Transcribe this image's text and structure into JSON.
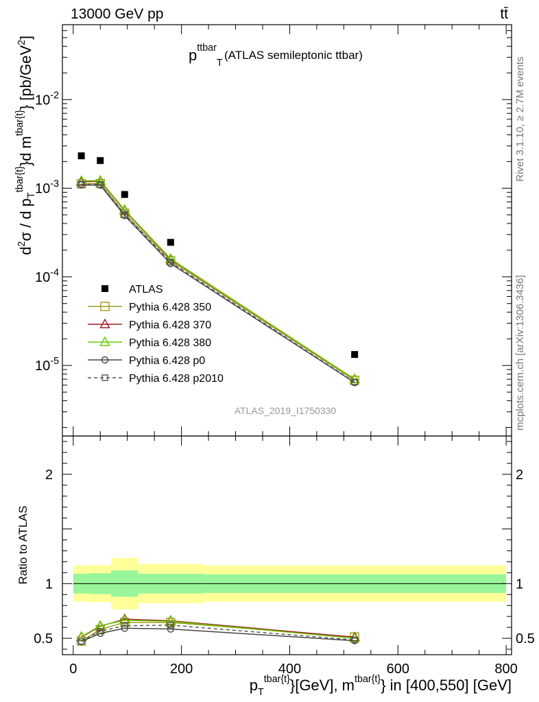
{
  "header": {
    "energy_label": "13000 GeV pp",
    "process_label": "tt̄"
  },
  "side_labels": {
    "rivet": "Rivet 3.1.10, ≥ 2.7M events",
    "mcplots": "mcplots.cern.ch [arXiv:1306.3436]"
  },
  "colors": {
    "data": "#000000",
    "p350": "#9e9a1e",
    "p370": "#a01c24",
    "p380": "#66cc00",
    "p0": "#444444",
    "p2010": "#555555",
    "band_inner": "#99f599",
    "band_outer": "#ffff99"
  },
  "chart_data": [
    {
      "type": "line",
      "title_main": "p",
      "title_sub": "T",
      "title_sup": "ttbar",
      "title_rest": "(ATLAS semileptonic ttbar)",
      "watermark": "ATLAS_2019_I1750330",
      "ylabel": "d²σ / d p_T^{tbar{t}}d m^{tbar{t}} [pb/GeV²]",
      "ylog": true,
      "ylim": [
        1.6e-06,
        0.07
      ],
      "xlim": [
        -20,
        810
      ],
      "ytick_labels": [
        "10^{-2}",
        "10^{-3}",
        "10^{-4}",
        "10^{-5}"
      ],
      "legend_position": "lower-left",
      "x": [
        15,
        50,
        95,
        180,
        520
      ],
      "series": [
        {
          "name": "ATLAS",
          "key": "data",
          "marker": "filled-square",
          "values": [
            0.00232,
            0.00205,
            0.00085,
            0.000245,
            1.33e-05
          ]
        },
        {
          "name": "Pythia 6.428 350",
          "key": "p350",
          "marker": "open-square",
          "dashed": false,
          "values": [
            0.00112,
            0.00113,
            0.00052,
            0.000152,
            6.8e-06
          ]
        },
        {
          "name": "Pythia 6.428 370",
          "key": "p370",
          "marker": "open-triangle",
          "dashed": false,
          "values": [
            0.00118,
            0.0012,
            0.00056,
            0.000158,
            7e-06
          ]
        },
        {
          "name": "Pythia 6.428 380",
          "key": "p380",
          "marker": "open-triangle",
          "dashed": false,
          "values": [
            0.00121,
            0.00122,
            0.00057,
            0.00016,
            7e-06
          ]
        },
        {
          "name": "Pythia 6.428 p0",
          "key": "p0",
          "marker": "open-circle",
          "dashed": false,
          "values": [
            0.00109,
            0.00108,
            0.00049,
            0.000141,
            6.4e-06
          ]
        },
        {
          "name": "Pythia 6.428 p2010",
          "key": "p2010",
          "marker": "open-square-small",
          "dashed": true,
          "values": [
            0.00111,
            0.0011,
            0.000505,
            0.000146,
            6.5e-06
          ]
        }
      ]
    },
    {
      "type": "line",
      "ylabel": "Ratio to ATLAS",
      "xlabel": "p_T^{tbar{t}}[GeV], m^{tbar{t}} in [400,550] [GeV]",
      "ylim": [
        0.35,
        2.35
      ],
      "xlim": [
        -20,
        810
      ],
      "xticks": [
        0,
        200,
        400,
        600,
        800
      ],
      "yticks": [
        0.5,
        1,
        2
      ],
      "bands": [
        {
          "x0": 0,
          "x1": 30,
          "inner": [
            0.91,
            1.09
          ],
          "outer": [
            0.835,
            1.165
          ]
        },
        {
          "x0": 30,
          "x1": 70,
          "inner": [
            0.905,
            1.095
          ],
          "outer": [
            0.83,
            1.17
          ]
        },
        {
          "x0": 70,
          "x1": 120,
          "inner": [
            0.88,
            1.12
          ],
          "outer": [
            0.765,
            1.235
          ]
        },
        {
          "x0": 120,
          "x1": 240,
          "inner": [
            0.91,
            1.09
          ],
          "outer": [
            0.82,
            1.18
          ]
        },
        {
          "x0": 240,
          "x1": 800,
          "inner": [
            0.915,
            1.085
          ],
          "outer": [
            0.835,
            1.165
          ]
        }
      ],
      "x": [
        15,
        50,
        95,
        180,
        520
      ],
      "series": [
        {
          "name": "Pythia 6.428 350",
          "key": "p350",
          "marker": "open-square",
          "values": [
            0.475,
            0.58,
            0.645,
            0.645,
            0.512
          ]
        },
        {
          "name": "Pythia 6.428 370",
          "key": "p370",
          "marker": "open-triangle",
          "values": [
            0.51,
            0.61,
            0.675,
            0.66,
            0.51
          ]
        },
        {
          "name": "Pythia 6.428 380",
          "key": "p380",
          "marker": "open-triangle",
          "values": [
            0.515,
            0.615,
            0.665,
            0.655,
            0.5
          ]
        },
        {
          "name": "Pythia 6.428 p0",
          "key": "p0",
          "marker": "open-circle",
          "values": [
            0.47,
            0.545,
            0.592,
            0.585,
            0.478
          ]
        },
        {
          "name": "Pythia 6.428 p2010",
          "key": "p2010",
          "marker": "open-square-small",
          "dashed": true,
          "values": [
            0.472,
            0.565,
            0.615,
            0.62,
            0.485
          ]
        }
      ]
    }
  ]
}
